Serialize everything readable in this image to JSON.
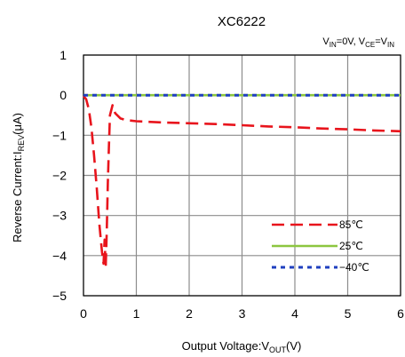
{
  "chart_data": {
    "type": "line",
    "title": "XC6222",
    "condition": {
      "vin_main": "V",
      "vin_sub": "IN",
      "vin_eq": "=0V, ",
      "vce_main": "V",
      "vce_sub": "CE",
      "vce_eq": "=",
      "vce_rhs_main": "V",
      "vce_rhs_sub": "IN"
    },
    "xlabel": {
      "main": "Output Voltage",
      "sep": ":",
      "sym": "V",
      "sub": "OUT",
      "unit": "(V)"
    },
    "ylabel": {
      "main": "Reverse Current",
      "sep": ":",
      "sym": "I",
      "sub": "REV",
      "unit": "(μA)"
    },
    "xlim": [
      0,
      6
    ],
    "ylim": [
      -5,
      1
    ],
    "xticks": [
      0,
      1,
      2,
      3,
      4,
      5,
      6
    ],
    "yticks": [
      1,
      0,
      -1,
      -2,
      -3,
      -4,
      -5
    ],
    "grid": true,
    "legend_position": "bottom-right",
    "series": [
      {
        "name": "85℃",
        "color": "#e8141c",
        "style": "dashed",
        "x": [
          0,
          0.05,
          0.1,
          0.15,
          0.2,
          0.25,
          0.3,
          0.35,
          0.38,
          0.4,
          0.42,
          0.44,
          0.46,
          0.48,
          0.5,
          0.55,
          0.6,
          0.7,
          0.8,
          1.0,
          1.5,
          2.0,
          2.5,
          3.0,
          3.5,
          4.0,
          4.5,
          5.0,
          5.5,
          6.0
        ],
        "y": [
          -0.02,
          -0.1,
          -0.35,
          -0.8,
          -1.5,
          -2.3,
          -3.2,
          -3.9,
          -4.2,
          -3.6,
          -4.3,
          -3.4,
          -2.2,
          -1.3,
          -0.5,
          -0.25,
          -0.45,
          -0.58,
          -0.62,
          -0.65,
          -0.68,
          -0.7,
          -0.72,
          -0.75,
          -0.78,
          -0.8,
          -0.83,
          -0.85,
          -0.88,
          -0.9
        ]
      },
      {
        "name": "25℃",
        "color": "#8cc63f",
        "style": "solid",
        "x": [
          0,
          6
        ],
        "y": [
          0,
          0
        ]
      },
      {
        "name": "-40℃",
        "color": "#1f3fbf",
        "style": "dotted",
        "x": [
          0,
          6
        ],
        "y": [
          0,
          0
        ]
      }
    ]
  }
}
